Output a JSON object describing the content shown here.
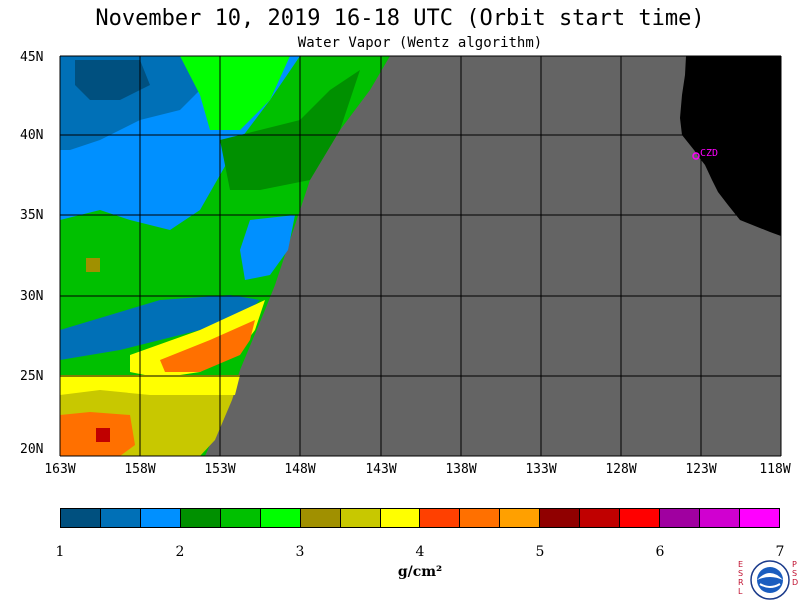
{
  "title": "November 10, 2019  16-18 UTC  (Orbit start time)",
  "subtitle": "Water Vapor (Wentz algorithm)",
  "map": {
    "lat_labels": [
      "45N",
      "40N",
      "35N",
      "30N",
      "25N",
      "20N"
    ],
    "lon_labels": [
      "163W",
      "158W",
      "153W",
      "148W",
      "143W",
      "138W",
      "133W",
      "128W",
      "123W",
      "118W"
    ],
    "station_label": "CZD",
    "colors": {
      "land": "#000000",
      "no_data": "#646464",
      "grid": "#000000",
      "station": "#ff00ff"
    }
  },
  "colorbar": {
    "unit": "g/cm²",
    "ticks": [
      "1",
      "2",
      "3",
      "4",
      "5",
      "6",
      "7"
    ],
    "colors": [
      "#00507f",
      "#0070b7",
      "#0090ff",
      "#009000",
      "#00c000",
      "#00ff00",
      "#a09000",
      "#c8c800",
      "#ffff00",
      "#ff4000",
      "#ff7000",
      "#ffa000",
      "#900000",
      "#c00000",
      "#ff0000",
      "#a000a0",
      "#d000d0",
      "#ff00ff"
    ]
  },
  "logo": {
    "left_text": "ESRL",
    "right_text": "PSD",
    "name": "NOAA"
  }
}
